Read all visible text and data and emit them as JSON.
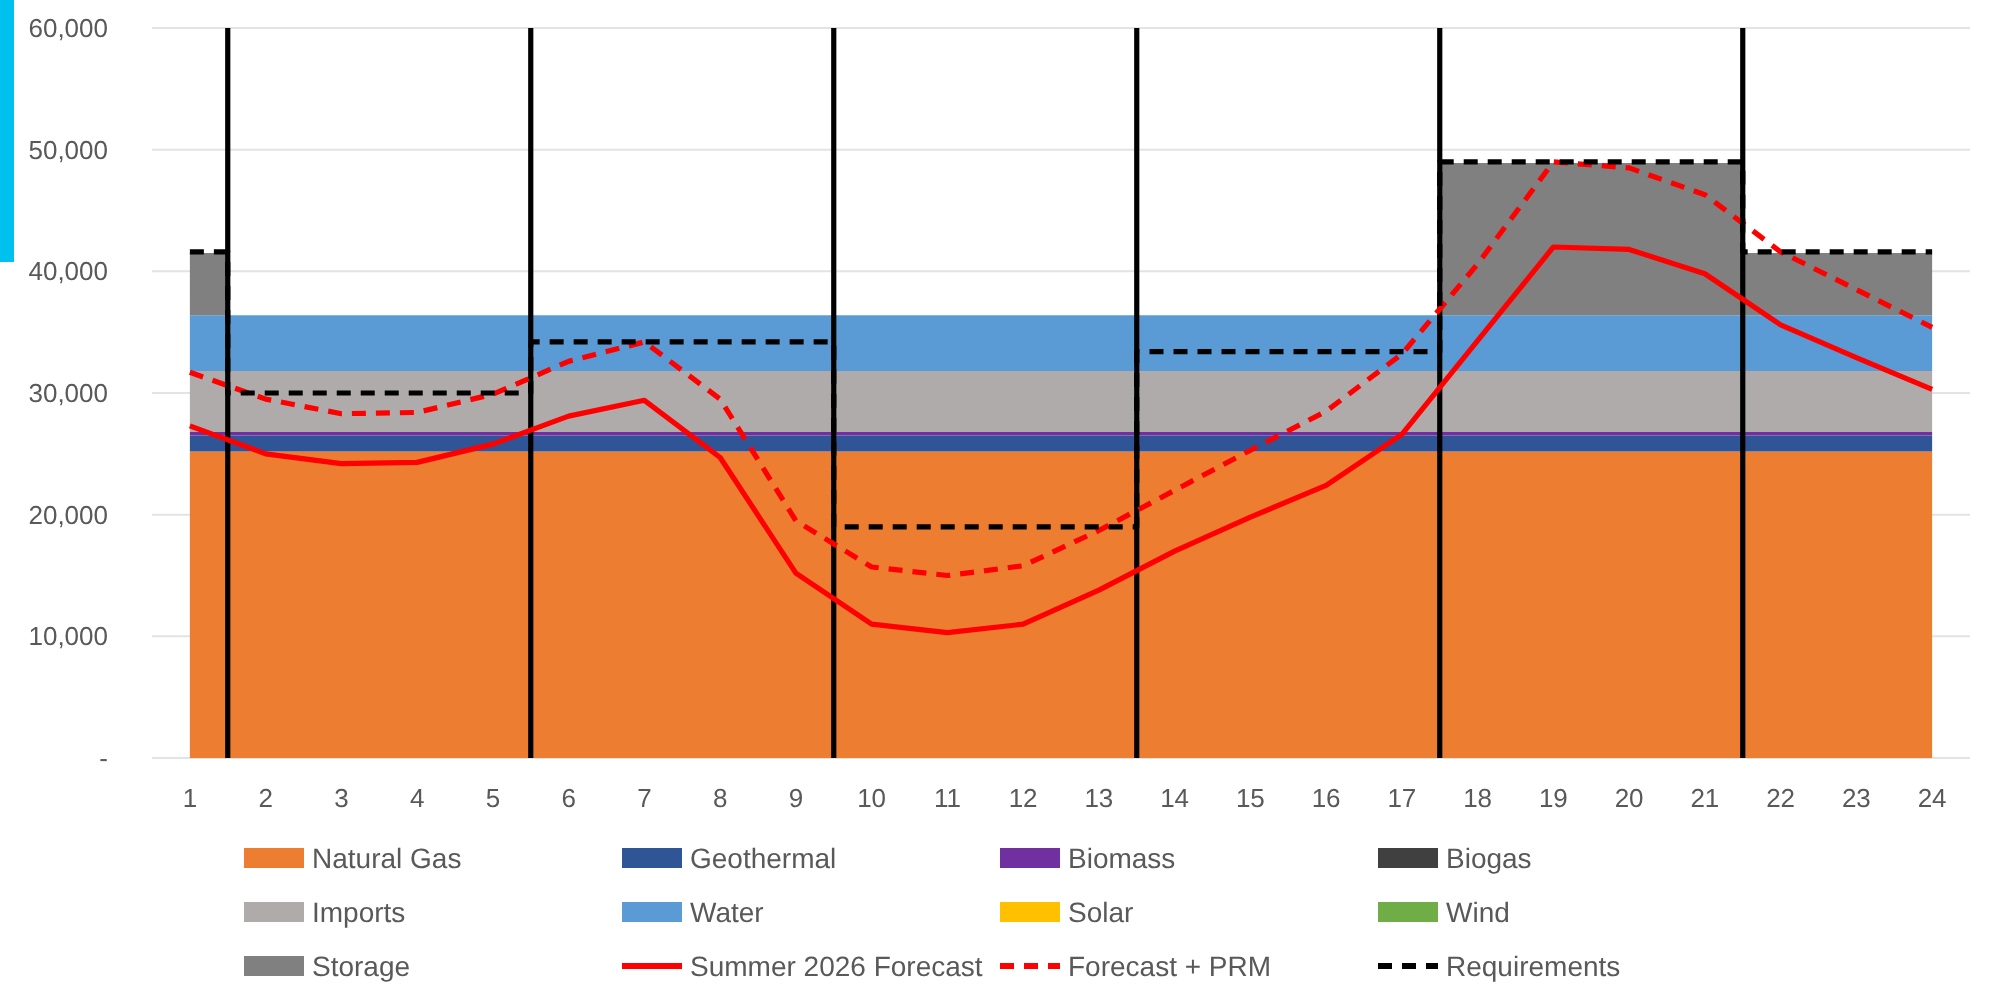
{
  "chart_data": {
    "type": "area",
    "stacked": true,
    "x": [
      1,
      2,
      3,
      4,
      5,
      6,
      7,
      8,
      9,
      10,
      11,
      12,
      13,
      14,
      15,
      16,
      17,
      18,
      19,
      20,
      21,
      22,
      23,
      24
    ],
    "xlim": [
      0.5,
      24.5
    ],
    "xticks": [
      1,
      2,
      3,
      4,
      5,
      6,
      7,
      8,
      9,
      10,
      11,
      12,
      13,
      14,
      15,
      16,
      17,
      18,
      19,
      20,
      21,
      22,
      23,
      24
    ],
    "ylim": [
      0,
      60000
    ],
    "yticks": [
      {
        "value": 0,
        "label": "-"
      },
      {
        "value": 10000,
        "label": "10,000"
      },
      {
        "value": 20000,
        "label": "20,000"
      },
      {
        "value": 30000,
        "label": "30,000"
      },
      {
        "value": 40000,
        "label": "40,000"
      },
      {
        "value": 50000,
        "label": "50,000"
      },
      {
        "value": 60000,
        "label": "60,000"
      }
    ],
    "grid": "y",
    "legend": "bottom",
    "series": [
      {
        "name": "Natural Gas",
        "color": "#ed7d31",
        "values": [
          25200,
          25200,
          25200,
          25200,
          25200,
          25200,
          25200,
          25200,
          25200,
          25200,
          25200,
          25200,
          25200,
          25200,
          25200,
          25200,
          25200,
          25200,
          25200,
          25200,
          25200,
          25200,
          25200,
          25200
        ]
      },
      {
        "name": "Geothermal",
        "color": "#2f5597",
        "values": [
          1300,
          1300,
          1300,
          1300,
          1300,
          1300,
          1300,
          1300,
          1300,
          1300,
          1300,
          1300,
          1300,
          1300,
          1300,
          1300,
          1300,
          1300,
          1300,
          1300,
          1300,
          1300,
          1300,
          1300
        ]
      },
      {
        "name": "Biomass",
        "color": "#7030a0",
        "values": [
          300,
          300,
          300,
          300,
          300,
          300,
          300,
          300,
          300,
          300,
          300,
          300,
          300,
          300,
          300,
          300,
          300,
          300,
          300,
          300,
          300,
          300,
          300,
          300
        ]
      },
      {
        "name": "Biogas",
        "color": "#404040",
        "values": [
          null,
          null,
          null,
          null,
          null,
          null,
          null,
          null,
          null,
          null,
          null,
          null,
          null,
          null,
          null,
          null,
          null,
          null,
          null,
          null,
          null,
          null,
          null,
          null
        ]
      },
      {
        "name": "Imports",
        "color": "#afabab",
        "values": [
          5000,
          5000,
          5000,
          5000,
          5000,
          5000,
          5000,
          5000,
          5000,
          5000,
          5000,
          5000,
          5000,
          5000,
          5000,
          5000,
          5000,
          5000,
          5000,
          5000,
          5000,
          5000,
          5000,
          5000
        ]
      },
      {
        "name": "Water",
        "color": "#5b9bd5",
        "values": [
          4600,
          4600,
          4600,
          4600,
          4600,
          4600,
          4600,
          4600,
          4600,
          4600,
          4600,
          4600,
          4600,
          4600,
          4600,
          4600,
          4600,
          4600,
          4600,
          4600,
          4600,
          4600,
          4600,
          4600
        ]
      },
      {
        "name": "Solar",
        "color": "#ffc000",
        "values": [
          null,
          null,
          null,
          null,
          null,
          null,
          null,
          null,
          null,
          null,
          null,
          null,
          null,
          null,
          null,
          null,
          null,
          null,
          null,
          null,
          null,
          null,
          null,
          null
        ]
      },
      {
        "name": "Wind",
        "color": "#70ad47",
        "values": [
          null,
          null,
          null,
          null,
          null,
          null,
          null,
          null,
          null,
          null,
          null,
          null,
          null,
          null,
          null,
          null,
          null,
          null,
          null,
          null,
          null,
          null,
          null,
          null
        ]
      },
      {
        "name": "Storage",
        "color": "#808080",
        "values": [
          5100,
          0,
          0,
          0,
          0,
          0,
          0,
          0,
          0,
          0,
          0,
          0,
          0,
          0,
          0,
          0,
          0,
          12500,
          12500,
          12500,
          12500,
          5100,
          5100,
          5100
        ]
      },
      {
        "name": "Summer 2026 Forecast",
        "type": "line",
        "line_style": "solid",
        "color": "#ff0000",
        "values": [
          27300,
          25000,
          24200,
          24300,
          25800,
          28100,
          29400,
          24700,
          15200,
          11000,
          10300,
          11000,
          13800,
          17000,
          19800,
          22400,
          26600,
          34300,
          42000,
          41800,
          39800,
          35600,
          32900,
          30300
        ]
      },
      {
        "name": "Forecast + PRM",
        "type": "line",
        "line_style": "dashed",
        "color": "#ff0000",
        "values": [
          31700,
          29500,
          28300,
          28400,
          29900,
          32600,
          34200,
          29500,
          19500,
          15700,
          15000,
          15800,
          18700,
          22000,
          25300,
          28500,
          33200,
          40600,
          49000,
          48500,
          46300,
          41600,
          38500,
          35400
        ]
      },
      {
        "name": "Requirements",
        "type": "step",
        "line_style": "dashed",
        "color": "#000000",
        "values": [
          41600,
          30000,
          30000,
          30000,
          30000,
          34200,
          34200,
          34200,
          34200,
          19000,
          19000,
          19000,
          19000,
          33400,
          33400,
          33400,
          33400,
          49000,
          49000,
          49000,
          49000,
          41600,
          41600,
          41600
        ]
      }
    ],
    "ref_lines": [
      {
        "axis": "x",
        "value": 1.5,
        "color": "#000000"
      },
      {
        "axis": "x",
        "value": 5.5,
        "color": "#000000"
      },
      {
        "axis": "x",
        "value": 9.5,
        "color": "#000000"
      },
      {
        "axis": "x",
        "value": 13.5,
        "color": "#000000"
      },
      {
        "axis": "x",
        "value": 17.5,
        "color": "#000000"
      },
      {
        "axis": "x",
        "value": 21.5,
        "color": "#000000"
      }
    ]
  }
}
